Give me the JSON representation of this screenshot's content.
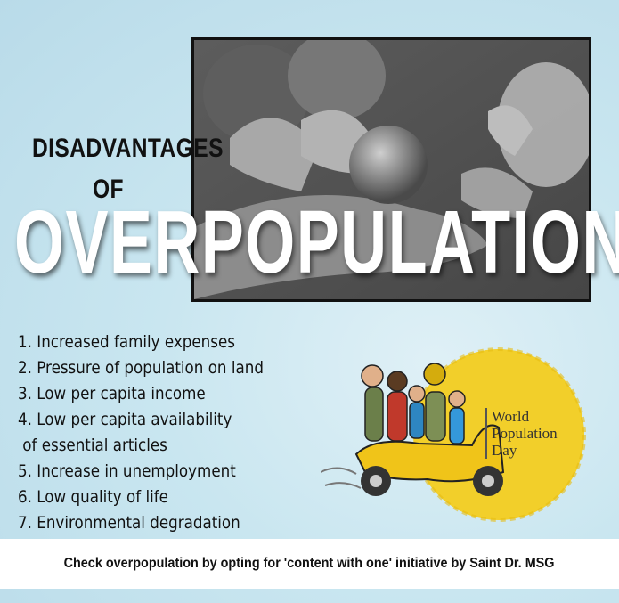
{
  "headline": {
    "line1": "DISADVANTAGES",
    "line2": "OF",
    "line3": "OVERPOPULATION"
  },
  "disadvantages": [
    "1. Increased family expenses",
    "2. Pressure of population on land",
    "3. Low per capita income",
    "4. Low per capita availability",
    "of essential articles",
    "5. Increase in unemployment",
    "6. Low quality of life",
    "7. Environmental degradation"
  ],
  "logo": {
    "line1": "World",
    "line2": "Population",
    "line3": "Day",
    "accent_color": "#f2cf2a"
  },
  "footer": {
    "text": "Check overpopulation by opting for 'content with one' initiative by Saint Dr. MSG"
  },
  "colors": {
    "background": "#c5e3ee",
    "headline_dark": "#111111",
    "headline_light": "#ffffff"
  }
}
